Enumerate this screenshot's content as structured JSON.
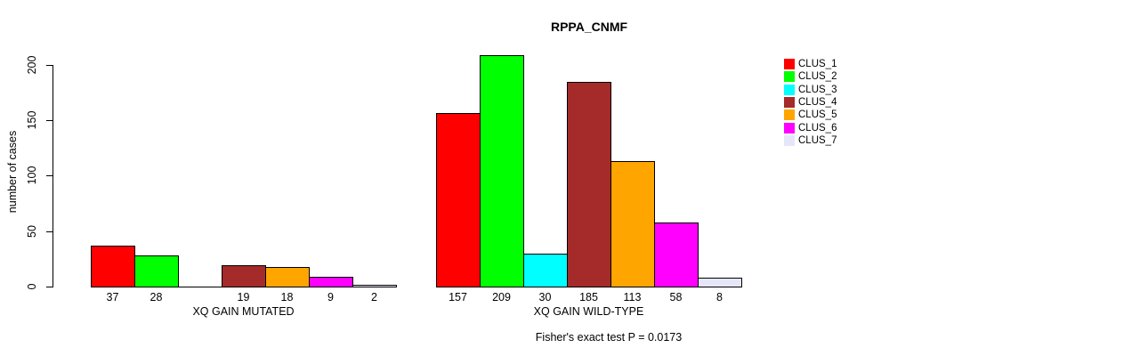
{
  "title": "RPPA_CNMF",
  "footer": "Fisher's exact test P = 0.0173",
  "chart_data": {
    "type": "bar",
    "title": "RPPA_CNMF",
    "xlabel": "",
    "ylabel": "number of cases",
    "ylim": [
      0,
      200
    ],
    "yticks": [
      "0",
      "50",
      "100",
      "150",
      "200"
    ],
    "grid": false,
    "legend_position": "right",
    "legend_entries": [
      "CLUS_1",
      "CLUS_2",
      "CLUS_3",
      "CLUS_4",
      "CLUS_5",
      "CLUS_6",
      "CLUS_7"
    ],
    "cluster_colors": [
      "#FF0000",
      "#00FF00",
      "#00FFFF",
      "#A52A2A",
      "#FFA500",
      "#FF00FF",
      "#E6E6FA"
    ],
    "categories": [
      "XQ GAIN MUTATED",
      "XQ GAIN WILD-TYPE"
    ],
    "series": [
      {
        "name": "CLUS_1",
        "color": "#FF0000",
        "values": [
          37,
          157
        ]
      },
      {
        "name": "CLUS_2",
        "color": "#00FF00",
        "values": [
          28,
          209
        ]
      },
      {
        "name": "CLUS_3",
        "color": "#00FFFF",
        "values": [
          0,
          30
        ]
      },
      {
        "name": "CLUS_4",
        "color": "#A52A2A",
        "values": [
          19,
          185
        ]
      },
      {
        "name": "CLUS_5",
        "color": "#FFA500",
        "values": [
          18,
          113
        ]
      },
      {
        "name": "CLUS_6",
        "color": "#FF00FF",
        "values": [
          9,
          58
        ]
      },
      {
        "name": "CLUS_7",
        "color": "#E6E6FA",
        "values": [
          2,
          8
        ]
      }
    ],
    "groups": [
      {
        "label": "XQ GAIN MUTATED",
        "values": [
          37,
          28,
          0,
          19,
          18,
          9,
          2
        ]
      },
      {
        "label": "XQ GAIN WILD-TYPE",
        "values": [
          157,
          209,
          30,
          185,
          113,
          58,
          8
        ]
      }
    ],
    "annotation": "Fisher's exact test P = 0.0173"
  }
}
